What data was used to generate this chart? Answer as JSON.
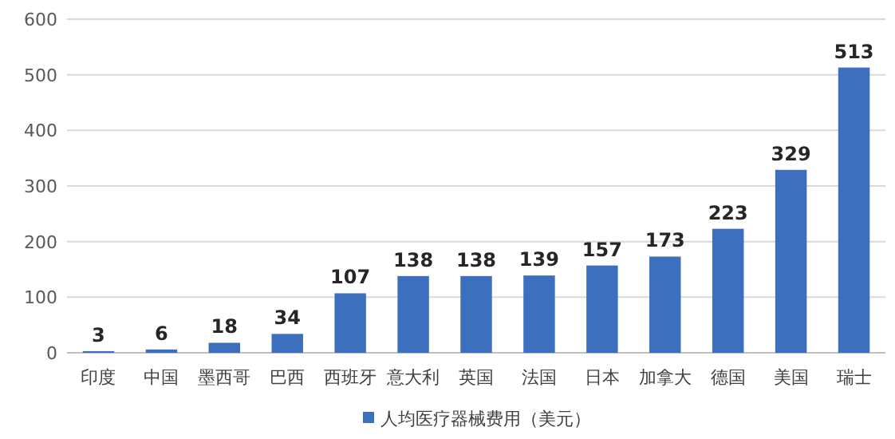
{
  "chart_data": {
    "type": "bar",
    "categories": [
      "印度",
      "中国",
      "墨西哥",
      "巴西",
      "西班牙",
      "意大利",
      "英国",
      "法国",
      "日本",
      "加拿大",
      "德国",
      "美国",
      "瑞士"
    ],
    "series": [
      {
        "name": "人均医疗器械费用（美元）",
        "color": "#3d6fbf",
        "values": [
          3,
          6,
          18,
          34,
          107,
          138,
          138,
          139,
          157,
          173,
          223,
          329,
          513
        ]
      }
    ],
    "ylim": [
      0,
      600
    ],
    "yticks": [
      0,
      100,
      200,
      300,
      400,
      500,
      600
    ],
    "grid": "y",
    "legend": "bottom",
    "data_labels": true
  }
}
